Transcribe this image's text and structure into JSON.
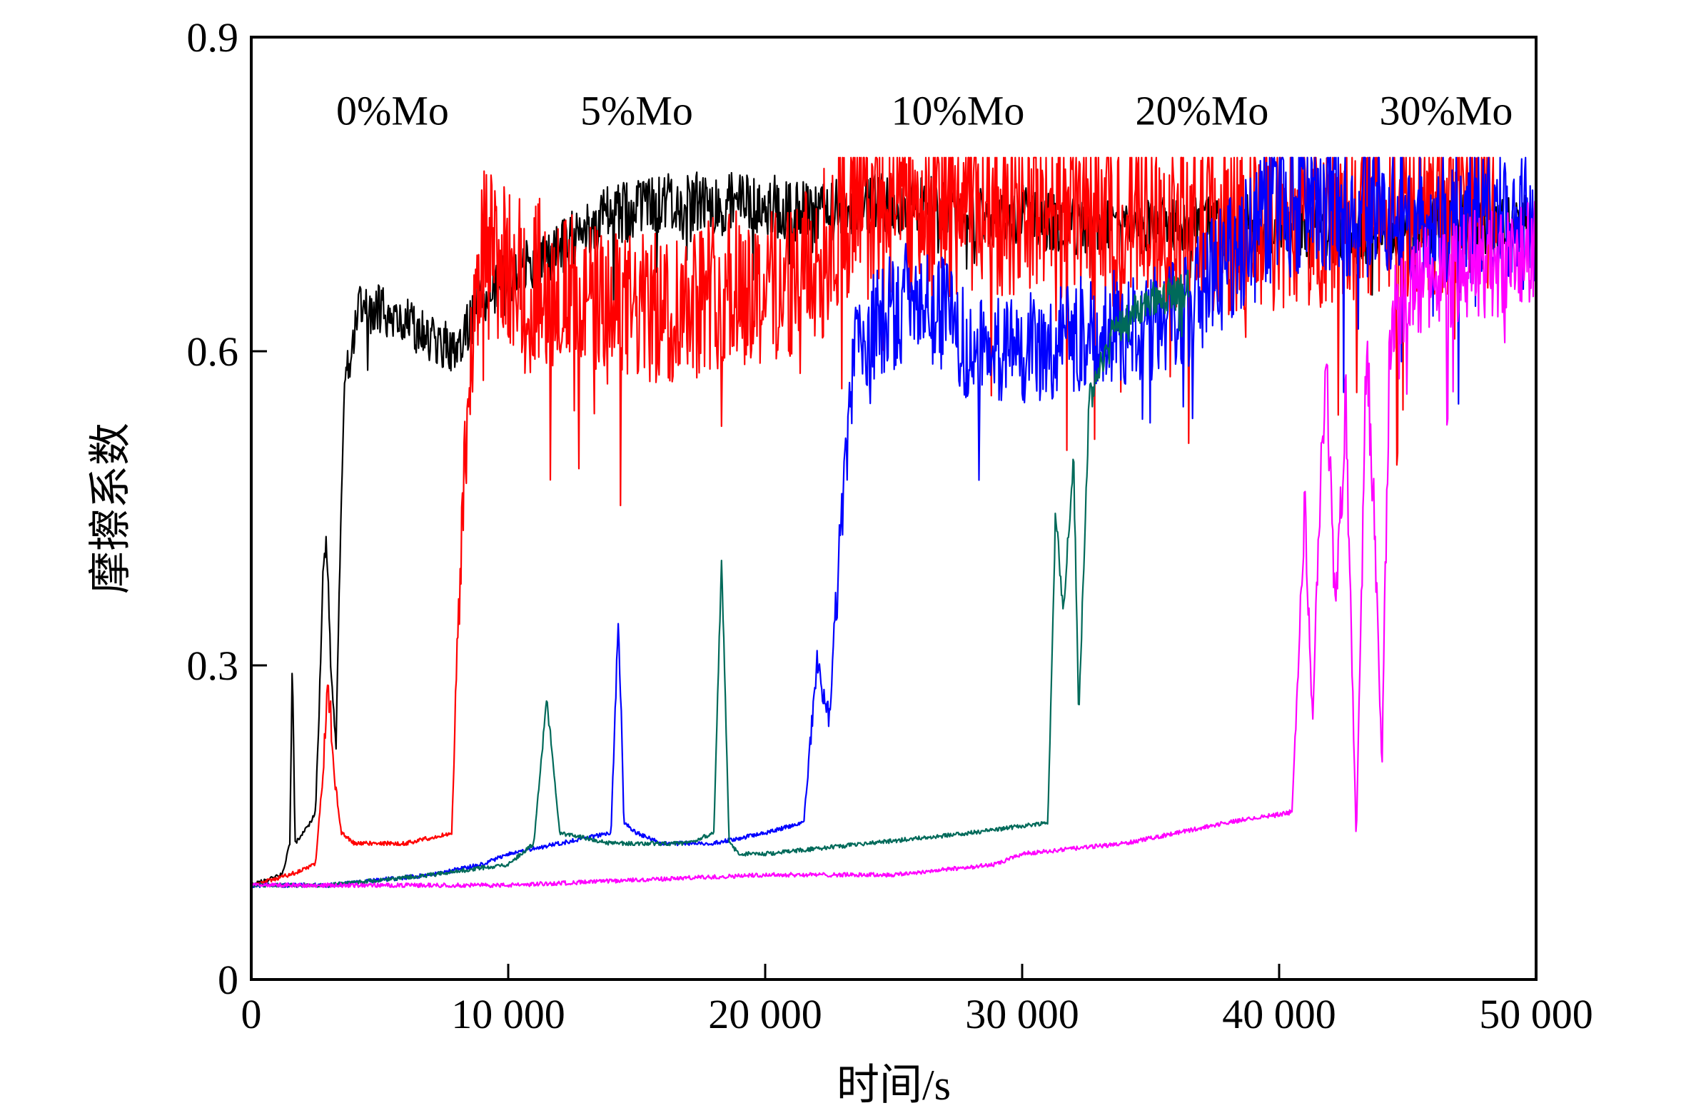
{
  "chart_data": {
    "type": "line",
    "title": "",
    "xlabel": "时间/s",
    "ylabel": "摩擦系数",
    "xlim": [
      0,
      50000
    ],
    "ylim": [
      0,
      0.9
    ],
    "x_ticks": [
      0,
      10000,
      20000,
      30000,
      40000,
      50000
    ],
    "x_tick_labels": [
      "0",
      "10 000",
      "20 000",
      "30 000",
      "40 000",
      "50 000"
    ],
    "y_ticks": [
      0,
      0.3,
      0.6,
      0.9
    ],
    "y_tick_labels": [
      "0",
      "0.3",
      "0.6",
      "0.9"
    ],
    "grid": false,
    "legend": "inline labels along top",
    "series_labels": [
      {
        "text": "0%Mo",
        "x": 5500,
        "y": 0.83
      },
      {
        "text": "5%Mo",
        "x": 15000,
        "y": 0.83
      },
      {
        "text": "10%Mo",
        "x": 27500,
        "y": 0.83
      },
      {
        "text": "20%Mo",
        "x": 37000,
        "y": 0.83
      },
      {
        "text": "30%Mo",
        "x": 46500,
        "y": 0.83
      }
    ],
    "series": [
      {
        "name": "0%Mo",
        "color": "#000000",
        "noise_amp": 0.03,
        "x": [
          0,
          1200,
          1500,
          1600,
          1700,
          2000,
          2300,
          2500,
          2700,
          2800,
          2900,
          3000,
          3100,
          3300,
          3400,
          3500,
          3600,
          3800,
          4000,
          4300,
          4600,
          5000,
          6000,
          7000,
          8000,
          9000,
          10000,
          12000,
          14000,
          16000,
          18000,
          20000,
          22000,
          24000,
          26000,
          28000,
          30000,
          32000,
          35000,
          38000,
          40000,
          43000,
          46000,
          48000,
          50000
        ],
        "y": [
          0.09,
          0.1,
          0.13,
          0.31,
          0.13,
          0.14,
          0.15,
          0.16,
          0.3,
          0.4,
          0.42,
          0.37,
          0.3,
          0.22,
          0.35,
          0.45,
          0.56,
          0.59,
          0.62,
          0.65,
          0.64,
          0.64,
          0.63,
          0.61,
          0.6,
          0.65,
          0.67,
          0.7,
          0.73,
          0.74,
          0.74,
          0.74,
          0.73,
          0.74,
          0.74,
          0.73,
          0.73,
          0.72,
          0.72,
          0.72,
          0.72,
          0.71,
          0.72,
          0.72,
          0.72
        ]
      },
      {
        "name": "5%Mo",
        "color": "#ff0000",
        "noise_amp": 0.09,
        "x": [
          0,
          1500,
          2500,
          2800,
          3000,
          3200,
          3500,
          4000,
          6000,
          7800,
          8000,
          8300,
          8600,
          9000,
          10000,
          12000,
          14000,
          16000,
          18000,
          20000,
          22000,
          23000,
          26000,
          30000,
          34000,
          38000,
          42000,
          46000,
          48500
        ],
        "y": [
          0.09,
          0.1,
          0.11,
          0.2,
          0.3,
          0.2,
          0.14,
          0.13,
          0.13,
          0.14,
          0.3,
          0.5,
          0.6,
          0.7,
          0.68,
          0.66,
          0.64,
          0.64,
          0.66,
          0.66,
          0.68,
          0.73,
          0.74,
          0.74,
          0.73,
          0.72,
          0.73,
          0.74,
          0.74
        ]
      },
      {
        "name": "10%Mo",
        "color": "#0000ff",
        "noise_amp": 0.07,
        "x": [
          0,
          3000,
          7000,
          9000,
          10000,
          12000,
          14000,
          14300,
          14500,
          15000,
          16000,
          18000,
          20000,
          21500,
          22000,
          22500,
          23000,
          23500,
          24500,
          26000,
          28000,
          30000,
          33000,
          36000,
          40000,
          44000,
          46000,
          48000,
          50000
        ],
        "y": [
          0.09,
          0.09,
          0.1,
          0.11,
          0.12,
          0.13,
          0.14,
          0.35,
          0.15,
          0.14,
          0.13,
          0.13,
          0.14,
          0.15,
          0.3,
          0.25,
          0.45,
          0.6,
          0.63,
          0.66,
          0.6,
          0.6,
          0.62,
          0.63,
          0.74,
          0.74,
          0.73,
          0.73,
          0.72
        ]
      },
      {
        "name": "20%Mo",
        "color": "#006a5a",
        "noise_amp": 0.02,
        "x": [
          0,
          3000,
          7000,
          10000,
          11000,
          11500,
          12000,
          14000,
          17000,
          18000,
          18300,
          18600,
          19000,
          20000,
          24000,
          28000,
          31000,
          31300,
          31600,
          32000,
          32200,
          32600,
          33500,
          35000,
          36500
        ],
        "y": [
          0.09,
          0.09,
          0.1,
          0.11,
          0.13,
          0.27,
          0.14,
          0.13,
          0.13,
          0.14,
          0.4,
          0.13,
          0.12,
          0.12,
          0.13,
          0.14,
          0.15,
          0.45,
          0.35,
          0.5,
          0.25,
          0.55,
          0.62,
          0.65,
          0.66
        ]
      },
      {
        "name": "30%Mo",
        "color": "#ff00ff",
        "noise_amp": 0.06,
        "x": [
          0,
          5000,
          10000,
          20000,
          25000,
          29000,
          30000,
          34000,
          36000,
          38000,
          40500,
          41000,
          41300,
          41800,
          42200,
          42600,
          43000,
          43400,
          43700,
          44000,
          44300,
          44600,
          45000,
          47000,
          50000
        ],
        "y": [
          0.09,
          0.09,
          0.09,
          0.1,
          0.1,
          0.11,
          0.12,
          0.13,
          0.14,
          0.15,
          0.16,
          0.45,
          0.25,
          0.6,
          0.35,
          0.55,
          0.13,
          0.6,
          0.45,
          0.2,
          0.62,
          0.65,
          0.66,
          0.68,
          0.69
        ]
      }
    ]
  }
}
